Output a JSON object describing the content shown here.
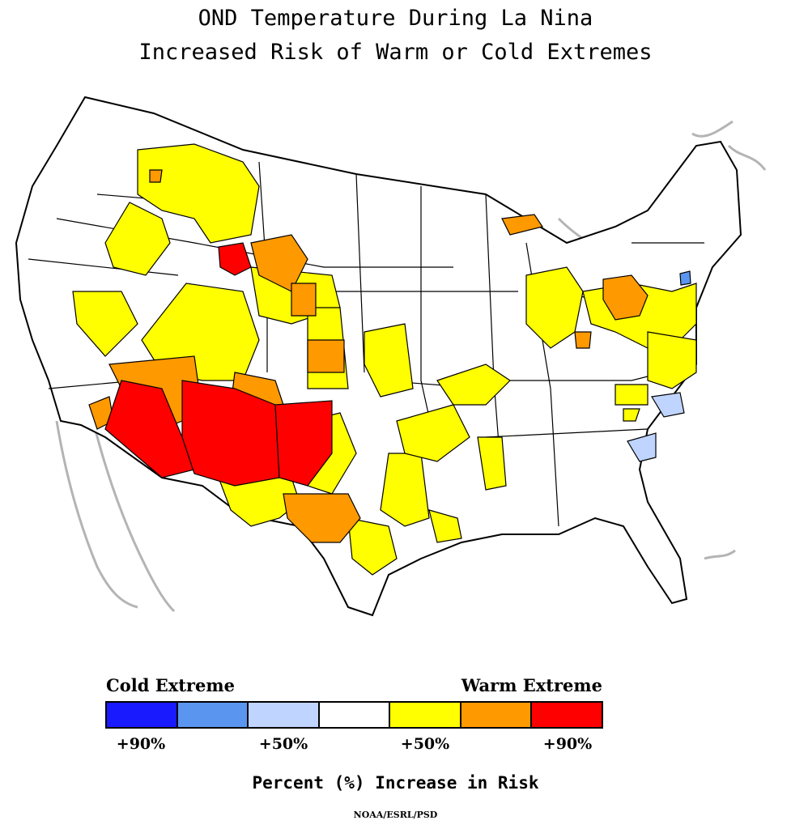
{
  "title": {
    "line1": "OND Temperature During La Nina",
    "line2": "Increased Risk of Warm or Cold Extremes"
  },
  "map": {
    "colors": {
      "land": "#ffffff",
      "outline": "#000000",
      "coast_context": "#b4b4b4",
      "warm_50": "#ffff00",
      "warm_70": "#ff9900",
      "warm_90": "#ff0000",
      "cold_50": "#bfd4ff",
      "cold_70": "#5a96f0"
    }
  },
  "legend": {
    "cold_label": "Cold Extreme",
    "warm_label": "Warm Extreme",
    "colors": [
      "#1a1aff",
      "#5a96f0",
      "#bfd4ff",
      "#ffffff",
      "#ffff00",
      "#ff9900",
      "#ff0000"
    ],
    "ticks": [
      "+90%",
      "+50%",
      "+50%",
      "+90%"
    ],
    "axis_title": "Percent (%) Increase in Risk"
  },
  "credit": "NOAA/ESRL/PSD"
}
